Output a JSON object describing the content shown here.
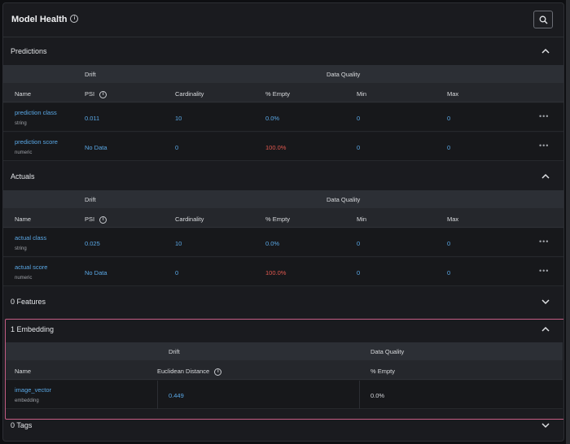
{
  "header": {
    "title": "Model Health"
  },
  "predictions": {
    "title": "Predictions",
    "groups": {
      "drift": "Drift",
      "quality": "Data Quality"
    },
    "columns": {
      "name": "Name",
      "psi": "PSI",
      "cardinality": "Cardinality",
      "empty": "% Empty",
      "min": "Min",
      "max": "Max"
    },
    "rows": [
      {
        "name": "prediction class",
        "type": "string",
        "psi": "0.011",
        "cardinality": "10",
        "empty": "0.0%",
        "min": "0",
        "max": "0"
      },
      {
        "name": "prediction score",
        "type": "numeric",
        "psi": "No Data",
        "cardinality": "0",
        "empty": "100.0%",
        "min": "0",
        "max": "0"
      }
    ]
  },
  "actuals": {
    "title": "Actuals",
    "groups": {
      "drift": "Drift",
      "quality": "Data Quality"
    },
    "columns": {
      "name": "Name",
      "psi": "PSI",
      "cardinality": "Cardinality",
      "empty": "% Empty",
      "min": "Min",
      "max": "Max"
    },
    "rows": [
      {
        "name": "actual class",
        "type": "string",
        "psi": "0.025",
        "cardinality": "10",
        "empty": "0.0%",
        "min": "0",
        "max": "0"
      },
      {
        "name": "actual score",
        "type": "numeric",
        "psi": "No Data",
        "cardinality": "0",
        "empty": "100.0%",
        "min": "0",
        "max": "0"
      }
    ]
  },
  "features": {
    "title": "0 Features"
  },
  "embedding": {
    "title": "1 Embedding",
    "groups": {
      "drift": "Drift",
      "quality": "Data Quality"
    },
    "columns": {
      "name": "Name",
      "distance": "Euclidean Distance",
      "empty": "% Empty"
    },
    "rows": [
      {
        "name": "image_vector",
        "type": "embedding",
        "distance": "0.449",
        "empty": "0.0%"
      }
    ]
  },
  "tags": {
    "title": "0 Tags"
  },
  "row_menu": "•••",
  "colors": {
    "accent": "#5aa8e6",
    "danger": "#e0584f",
    "highlight": "#c45d84"
  }
}
